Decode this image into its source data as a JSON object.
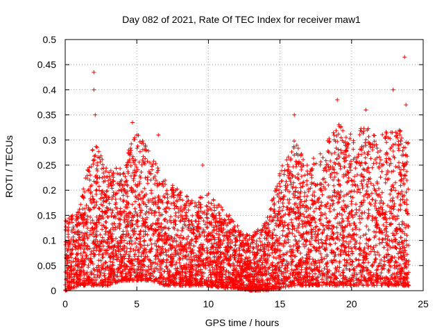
{
  "chart_data": {
    "type": "scatter",
    "title": "Day 082 of 2021, Rate Of TEC Index for receiver maw1",
    "xlabel": "GPS time / hours",
    "ylabel": "ROTI / TECUs",
    "xlim": [
      0,
      25
    ],
    "ylim": [
      0,
      0.5
    ],
    "xticks": [
      0,
      5,
      10,
      15,
      20,
      25
    ],
    "xtick_labels": [
      "0",
      "5",
      "10",
      "15",
      "20",
      "25"
    ],
    "yticks": [
      0,
      0.05,
      0.1,
      0.15,
      0.2,
      0.25,
      0.3,
      0.35,
      0.4,
      0.45,
      0.5
    ],
    "ytick_labels": [
      "0",
      "0.05",
      "0.1",
      "0.15",
      "0.2",
      "0.25",
      "0.3",
      "0.35",
      "0.4",
      "0.45",
      "0.5"
    ],
    "grid": true,
    "marker": "plus",
    "marker_color": "#ff0000",
    "data_range_x": [
      0,
      24
    ],
    "notable_points": [
      {
        "x": 2.0,
        "y": 0.435
      },
      {
        "x": 2.0,
        "y": 0.4
      },
      {
        "x": 2.1,
        "y": 0.35
      },
      {
        "x": 4.7,
        "y": 0.335
      },
      {
        "x": 6.5,
        "y": 0.31
      },
      {
        "x": 9.6,
        "y": 0.25
      },
      {
        "x": 16.0,
        "y": 0.35
      },
      {
        "x": 19.0,
        "y": 0.38
      },
      {
        "x": 21.0,
        "y": 0.36
      },
      {
        "x": 22.9,
        "y": 0.4
      },
      {
        "x": 23.7,
        "y": 0.465
      },
      {
        "x": 23.8,
        "y": 0.37
      }
    ],
    "envelope": [
      {
        "x": 0,
        "y_low": 0.0,
        "y_high": 0.14
      },
      {
        "x": 1,
        "y_low": 0.01,
        "y_high": 0.17
      },
      {
        "x": 2,
        "y_low": 0.01,
        "y_high": 0.3
      },
      {
        "x": 3,
        "y_low": 0.01,
        "y_high": 0.24
      },
      {
        "x": 4,
        "y_low": 0.02,
        "y_high": 0.25
      },
      {
        "x": 5,
        "y_low": 0.02,
        "y_high": 0.32
      },
      {
        "x": 6,
        "y_low": 0.02,
        "y_high": 0.27
      },
      {
        "x": 7,
        "y_low": 0.01,
        "y_high": 0.22
      },
      {
        "x": 8,
        "y_low": 0.01,
        "y_high": 0.2
      },
      {
        "x": 9,
        "y_low": 0.01,
        "y_high": 0.18
      },
      {
        "x": 10,
        "y_low": 0.01,
        "y_high": 0.2
      },
      {
        "x": 11,
        "y_low": 0.005,
        "y_high": 0.17
      },
      {
        "x": 12,
        "y_low": 0.005,
        "y_high": 0.13
      },
      {
        "x": 13,
        "y_low": 0.0,
        "y_high": 0.11
      },
      {
        "x": 14,
        "y_low": 0.0,
        "y_high": 0.14
      },
      {
        "x": 15,
        "y_low": 0.005,
        "y_high": 0.24
      },
      {
        "x": 16,
        "y_low": 0.01,
        "y_high": 0.3
      },
      {
        "x": 17,
        "y_low": 0.01,
        "y_high": 0.26
      },
      {
        "x": 18,
        "y_low": 0.01,
        "y_high": 0.28
      },
      {
        "x": 19,
        "y_low": 0.01,
        "y_high": 0.34
      },
      {
        "x": 20,
        "y_low": 0.01,
        "y_high": 0.31
      },
      {
        "x": 21,
        "y_low": 0.01,
        "y_high": 0.33
      },
      {
        "x": 22,
        "y_low": 0.01,
        "y_high": 0.31
      },
      {
        "x": 23,
        "y_low": 0.01,
        "y_high": 0.34
      },
      {
        "x": 24,
        "y_low": 0.01,
        "y_high": 0.3
      }
    ]
  }
}
